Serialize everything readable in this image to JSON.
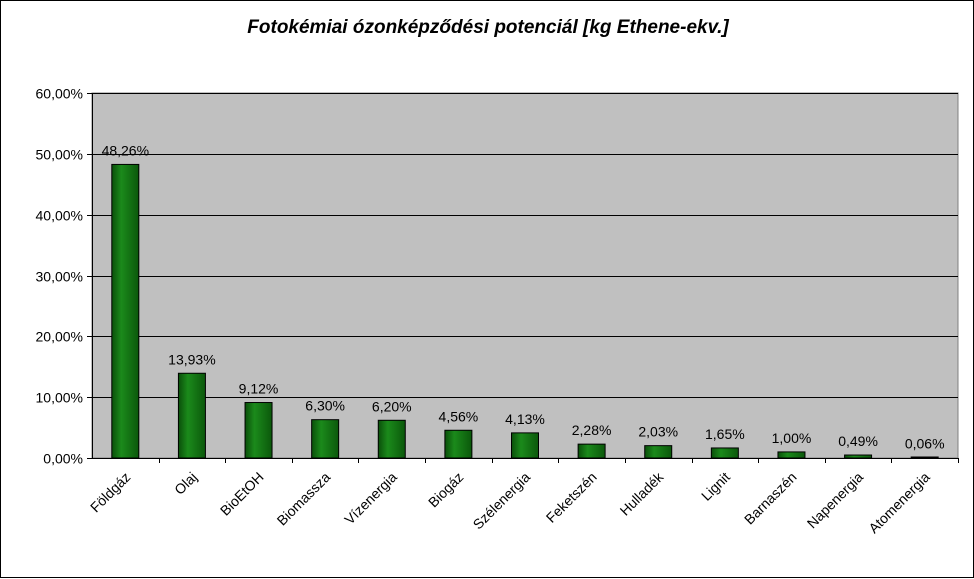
{
  "chart_data": {
    "type": "bar",
    "title": "Fotokémiai ózonképződési potenciál [kg Ethene-ekv.]",
    "xlabel": "",
    "ylabel": "",
    "ylim": [
      0,
      60
    ],
    "yticks": [
      "0,00%",
      "10,00%",
      "20,00%",
      "30,00%",
      "40,00%",
      "50,00%",
      "60,00%"
    ],
    "categories": [
      "Földgáz",
      "Olaj",
      "BioEtOH",
      "Biomassza",
      "Vízenergia",
      "Biogáz",
      "Szélenergia",
      "Feketszén",
      "Hulladék",
      "Lignit",
      "Barnaszén",
      "Napenergia",
      "Atomenergia"
    ],
    "values": [
      48.26,
      13.93,
      9.12,
      6.3,
      6.2,
      4.56,
      4.13,
      2.28,
      2.03,
      1.65,
      1.0,
      0.49,
      0.06
    ],
    "data_labels": [
      "48,26%",
      "13,93%",
      "9,12%",
      "6,30%",
      "6,20%",
      "4,56%",
      "4,13%",
      "2,28%",
      "2,03%",
      "1,65%",
      "1,00%",
      "0,49%",
      "0,06%"
    ],
    "grid": true,
    "legend": "none",
    "colors": {
      "plot_background": "#c0c0c0",
      "bar_fill": "#0f6b0f",
      "bar_border": "#000000",
      "gridline": "#000000"
    }
  }
}
